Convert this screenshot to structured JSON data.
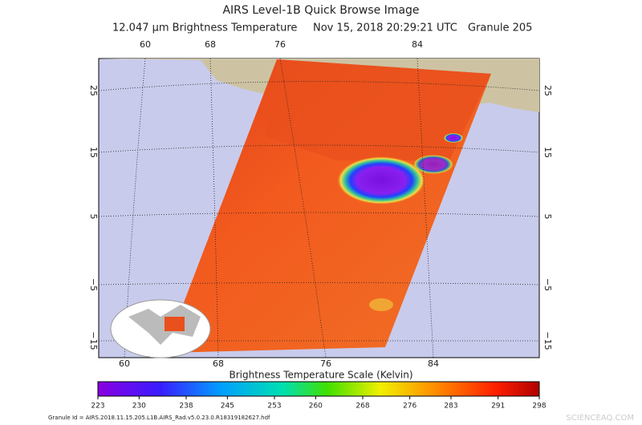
{
  "header": {
    "title": "AIRS Level-1B Quick Browse Image",
    "subtitle_parts": [
      "12.047 μm Brightness Temperature",
      "Nov 15, 2018 20:29:21 UTC",
      "Granule 205"
    ]
  },
  "map": {
    "top_lon_labels": [
      "60",
      "68",
      "76",
      "84"
    ],
    "bottom_lon_labels": [
      "60",
      "68",
      "76",
      "84"
    ],
    "left_lat_labels": [
      "25",
      "15",
      "5",
      "−5",
      "−15"
    ],
    "right_lat_labels": [
      "25",
      "15",
      "5",
      "−5",
      "−15"
    ]
  },
  "colorbar": {
    "title": "Brightness Temperature Scale (Kelvin)",
    "ticks": [
      223,
      230,
      238,
      245,
      253,
      260,
      268,
      276,
      283,
      291,
      298
    ]
  },
  "footer": {
    "granule_id": "Granule Id = AIRS.2018.11.15.205.L1B.AIRS_Rad.v5.0.23.0.R18319182627.hdf",
    "watermark": "SCIENCEAQ.COM"
  }
}
